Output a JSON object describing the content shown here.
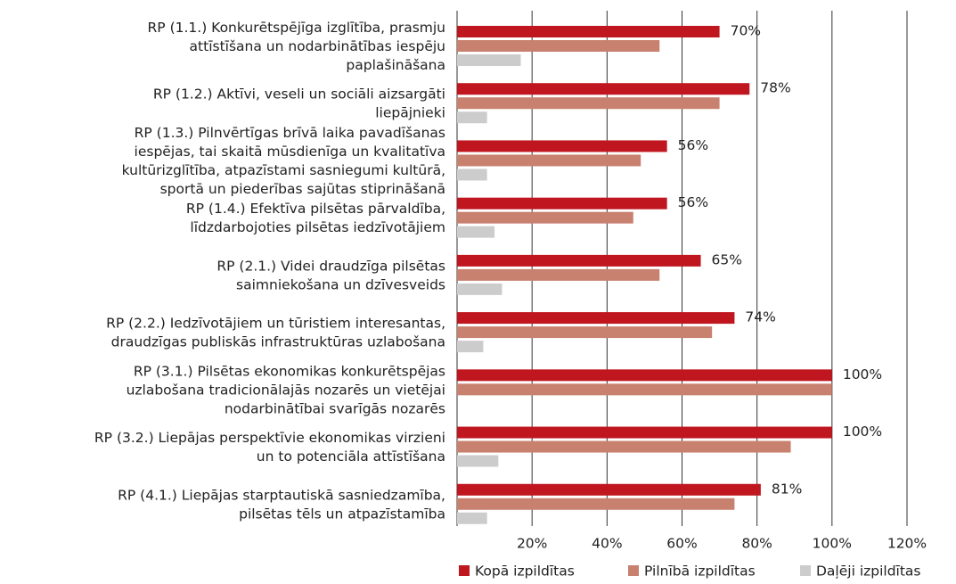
{
  "chart_data": {
    "type": "bar",
    "orientation": "horizontal",
    "categories": [
      "RP (1.1.) Konkurētspējīga izglītība, prasmju\nattīstīšana un nodarbinātības iespēju\npaplašināšana",
      "RP (1.2.) Aktīvi, veseli un sociāli aizsargāti\nliepājnieki",
      "RP (1.3.) Pilnvērtīgas brīvā laika pavadīšanas\niespējas, tai skaitā mūsdienīga un kvalitatīva\nkultūrizglītība, atpazīstami sasniegumi kultūrā,\nsportā un piederības sajūtas stiprināšanā",
      "RP (1.4.) Efektīva pilsētas pārvaldība,\nlīdzdarbojoties pilsētas iedzīvotājiem",
      "RP (2.1.) Videi draudzīga pilsētas\nsaimniekošana un dzīvesveids",
      "RP (2.2.) Iedzīvotājiem un tūristiem interesantas,\ndraudzīgas publiskās infrastruktūras uzlabošana",
      "RP (3.1.) Pilsētas ekonomikas konkurētspējas\nuzlabošana tradicionālajās nozarēs un vietējai\nnodarbinātībai svarīgās nozarēs",
      "RP (3.2.) Liepājas perspektīvie ekonomikas virzieni\nun to potenciāla attīstīšana",
      "RP (4.1.) Liepājas starptautiskā sasniedzamība,\npilsētas tēls un atpazīstamība"
    ],
    "series": [
      {
        "name": "Kopā izpildītas",
        "color": "#c0161f",
        "values": [
          70,
          78,
          56,
          56,
          65,
          74,
          100,
          100,
          81
        ],
        "value_labels": [
          "70%",
          "78%",
          "56%",
          "56%",
          "65%",
          "74%",
          "100%",
          "100%",
          "81%"
        ]
      },
      {
        "name": "Pilnībā izpildītas",
        "color": "#c8806f",
        "values": [
          54,
          70,
          49,
          47,
          54,
          68,
          100,
          89,
          74
        ]
      },
      {
        "name": "Daļēji izpildītas",
        "color": "#cccccc",
        "values": [
          17,
          8,
          8,
          10,
          12,
          7,
          0,
          11,
          8
        ]
      }
    ],
    "xlim": [
      0,
      120
    ],
    "xticks": [
      {
        "value": 20,
        "label": "20%"
      },
      {
        "value": 40,
        "label": "40%"
      },
      {
        "value": 60,
        "label": "60%"
      },
      {
        "value": 80,
        "label": "80%"
      },
      {
        "value": 100,
        "label": "100%"
      },
      {
        "value": 120,
        "label": "120%"
      }
    ],
    "grid": true,
    "legend": "bottom"
  }
}
